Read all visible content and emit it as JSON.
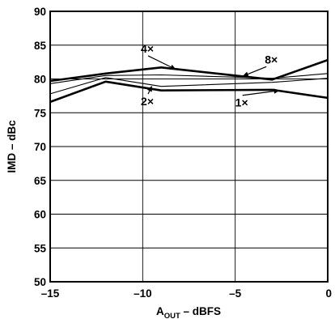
{
  "chart_data": {
    "type": "line",
    "xlabel_main": "A",
    "xlabel_sub": "OUT",
    "xlabel_rest": " – dBFS",
    "ylabel": "IMD – dBc",
    "xlim": [
      -15,
      0
    ],
    "ylim": [
      50,
      90
    ],
    "xticks": [
      -15,
      -10,
      -5,
      0
    ],
    "yticks": [
      50,
      55,
      60,
      65,
      70,
      75,
      80,
      85,
      90
    ],
    "xtick_labels": [
      "–15",
      "–10",
      "–5",
      "0"
    ],
    "ytick_labels": [
      "50",
      "55",
      "60",
      "65",
      "70",
      "75",
      "80",
      "85",
      "90"
    ],
    "grid": true,
    "series": [
      {
        "name": "1×",
        "thick": true,
        "x": [
          -15,
          -12,
          -9,
          -3,
          0
        ],
        "y": [
          76.6,
          79.6,
          78.3,
          78.4,
          77.2
        ]
      },
      {
        "name": "2×",
        "thick": false,
        "x": [
          -15,
          -12,
          -9,
          -3,
          0
        ],
        "y": [
          77.8,
          80.2,
          78.9,
          79.5,
          80.1
        ]
      },
      {
        "name": "4×",
        "thick": true,
        "x": [
          -15,
          -12,
          -9,
          -3,
          0
        ],
        "y": [
          79.7,
          80.8,
          81.7,
          79.9,
          82.8
        ]
      },
      {
        "name": "8×",
        "thick": false,
        "x": [
          -15,
          -12,
          -9,
          -3,
          0
        ],
        "y": [
          79.3,
          80.5,
          80.6,
          80.1,
          80.8
        ]
      }
    ],
    "annotations": [
      {
        "label": "4×",
        "series": "4×",
        "text_x": -10.1,
        "text_y": 83.9,
        "point_x": -8.2,
        "point_y": 81.4
      },
      {
        "label": "8×",
        "series": "8×",
        "text_x": -3.4,
        "text_y": 82.3,
        "point_x": -4.6,
        "point_y": 80.4
      },
      {
        "label": "2×",
        "series": "2×",
        "text_x": -10.1,
        "text_y": 76.1,
        "point_x": -9.5,
        "point_y": 79.0
      },
      {
        "label": "1×",
        "series": "1×",
        "text_x": -5.0,
        "text_y": 75.9,
        "point_x": -2.6,
        "point_y": 78.3
      }
    ]
  }
}
